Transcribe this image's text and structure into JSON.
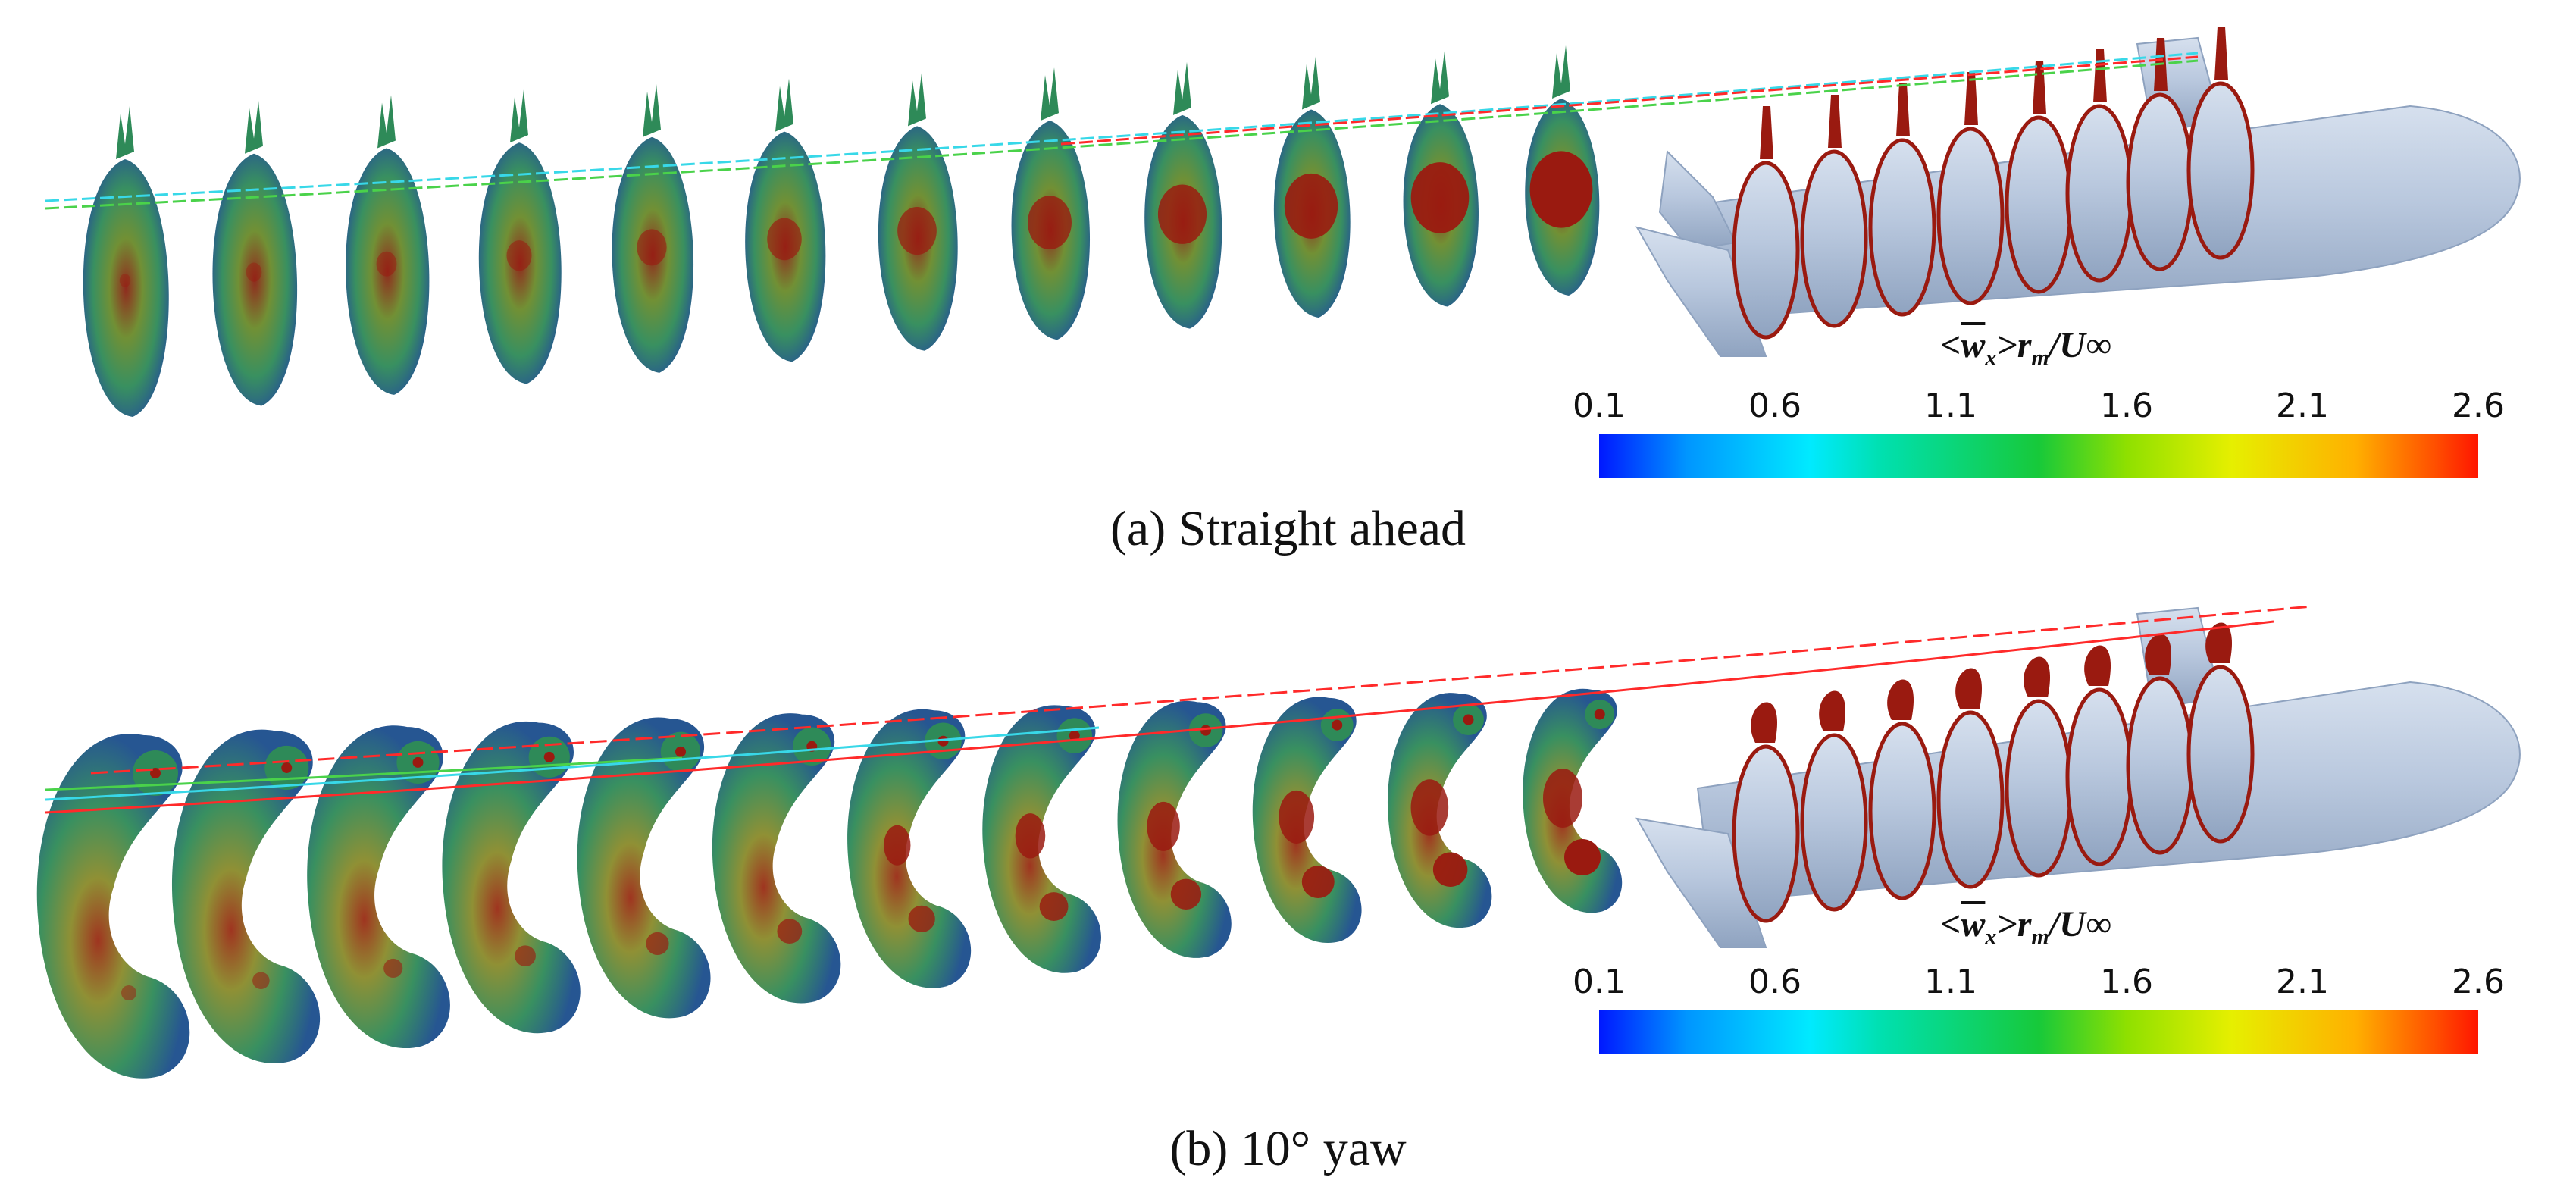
{
  "panels": [
    {
      "caption": "(a) Straight ahead",
      "condition": "straight-ahead",
      "colorbar": {
        "label_prefix": "<",
        "label_var": "w",
        "label_sub": "x",
        "label_suffix": ">r",
        "label_sub2": "m",
        "label_tail": "/U∞",
        "ticks": [
          "0.1",
          "0.6",
          "1.1",
          "1.6",
          "2.1",
          "2.6"
        ]
      }
    },
    {
      "caption": "(b) 10° yaw",
      "condition": "10-degree-yaw",
      "colorbar": {
        "label_prefix": "<",
        "label_var": "w",
        "label_sub": "x",
        "label_suffix": ">r",
        "label_sub2": "m",
        "label_tail": "/U∞",
        "ticks": [
          "0.1",
          "0.6",
          "1.1",
          "1.6",
          "2.1",
          "2.6"
        ]
      }
    }
  ],
  "colors": {
    "hull": "#b9c8de",
    "hull_edge": "#8ea2bf",
    "vortex_low": "#1b4d8c",
    "vortex_mid": "#2e8a58",
    "vortex_high": "#9a1a10",
    "track_red": "#ff2a2a",
    "track_green": "#4ad24a",
    "track_cyan": "#38d8e8"
  },
  "colormap": {
    "min": 0.1,
    "max": 2.6
  }
}
